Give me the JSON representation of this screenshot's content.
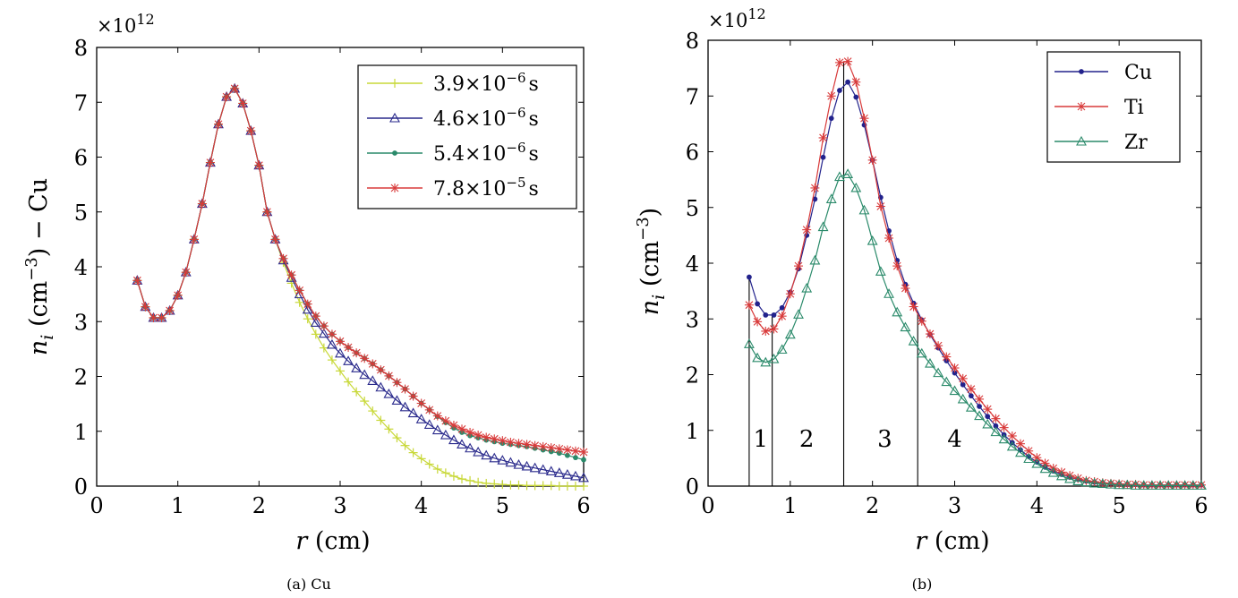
{
  "chart_data": [
    {
      "type": "line",
      "caption": "(a) Cu",
      "multiplier": "×10",
      "multiplier_exp": "12",
      "xlabel_var": "r",
      "xlabel_unit": " (cm)",
      "ylabel_var": "n",
      "ylabel_sub": "i",
      "ylabel_unit": " (cm",
      "ylabel_exp": "−3",
      "ylabel_tail": ")  − Cu",
      "xlim": [
        0,
        6
      ],
      "ylim": [
        0,
        8
      ],
      "xticks": [
        0,
        1,
        2,
        3,
        4,
        5,
        6
      ],
      "yticks": [
        0,
        1,
        2,
        3,
        4,
        5,
        6,
        7,
        8
      ],
      "grid": false,
      "legend_position": "top-right",
      "series": [
        {
          "name": "3.9×10⁻⁶s",
          "label_main": "3.9×10",
          "label_exp": "−6",
          "label_unit": "s",
          "color": "#c8d838",
          "marker": "plus",
          "x": [
            0.5,
            0.6,
            0.7,
            0.8,
            0.9,
            1.0,
            1.1,
            1.2,
            1.3,
            1.4,
            1.5,
            1.6,
            1.7,
            1.8,
            1.9,
            2.0,
            2.1,
            2.2,
            2.3,
            2.4,
            2.5,
            2.6,
            2.7,
            2.8,
            2.9,
            3.0,
            3.1,
            3.2,
            3.3,
            3.4,
            3.5,
            3.6,
            3.7,
            3.8,
            3.9,
            4.0,
            4.1,
            4.2,
            4.3,
            4.4,
            4.5,
            4.6,
            4.7,
            4.8,
            4.9,
            5.0,
            5.1,
            5.2,
            5.3,
            5.4,
            5.5,
            5.6,
            5.7,
            5.8,
            5.9,
            6.0
          ],
          "y": [
            3.75,
            3.27,
            3.07,
            3.07,
            3.2,
            3.48,
            3.9,
            4.5,
            5.15,
            5.9,
            6.6,
            7.1,
            7.25,
            6.98,
            6.48,
            5.85,
            5.0,
            4.5,
            4.08,
            3.7,
            3.35,
            3.05,
            2.77,
            2.52,
            2.3,
            2.1,
            1.9,
            1.72,
            1.55,
            1.37,
            1.2,
            1.04,
            0.88,
            0.74,
            0.61,
            0.5,
            0.4,
            0.31,
            0.24,
            0.18,
            0.13,
            0.1,
            0.07,
            0.05,
            0.04,
            0.03,
            0.02,
            0.02,
            0.01,
            0.01,
            0.01,
            0.01,
            0.0,
            0.0,
            0.0,
            0.0
          ]
        },
        {
          "name": "4.6×10⁻⁶s",
          "label_main": "4.6×10",
          "label_exp": "−6",
          "label_unit": "s",
          "color": "#2a2a8c",
          "marker": "triangle",
          "x": [
            0.5,
            0.6,
            0.7,
            0.8,
            0.9,
            1.0,
            1.1,
            1.2,
            1.3,
            1.4,
            1.5,
            1.6,
            1.7,
            1.8,
            1.9,
            2.0,
            2.1,
            2.2,
            2.3,
            2.4,
            2.5,
            2.6,
            2.7,
            2.8,
            2.9,
            3.0,
            3.1,
            3.2,
            3.3,
            3.4,
            3.5,
            3.6,
            3.7,
            3.8,
            3.9,
            4.0,
            4.1,
            4.2,
            4.3,
            4.4,
            4.5,
            4.6,
            4.7,
            4.8,
            4.9,
            5.0,
            5.1,
            5.2,
            5.3,
            5.4,
            5.5,
            5.6,
            5.7,
            5.8,
            5.9,
            6.0
          ],
          "y": [
            3.75,
            3.27,
            3.07,
            3.07,
            3.2,
            3.48,
            3.9,
            4.5,
            5.15,
            5.9,
            6.6,
            7.1,
            7.25,
            6.98,
            6.48,
            5.85,
            5.0,
            4.5,
            4.12,
            3.8,
            3.5,
            3.22,
            2.98,
            2.78,
            2.58,
            2.42,
            2.28,
            2.15,
            2.03,
            1.92,
            1.8,
            1.68,
            1.56,
            1.44,
            1.33,
            1.22,
            1.12,
            1.02,
            0.93,
            0.84,
            0.76,
            0.69,
            0.62,
            0.56,
            0.51,
            0.47,
            0.43,
            0.39,
            0.36,
            0.33,
            0.3,
            0.27,
            0.24,
            0.21,
            0.18,
            0.15
          ]
        },
        {
          "name": "5.4×10⁻⁶s",
          "label_main": "5.4×10",
          "label_exp": "−6",
          "label_unit": "s",
          "color": "#2a8a6a",
          "marker": "dot",
          "x": [
            0.5,
            0.6,
            0.7,
            0.8,
            0.9,
            1.0,
            1.1,
            1.2,
            1.3,
            1.4,
            1.5,
            1.6,
            1.7,
            1.8,
            1.9,
            2.0,
            2.1,
            2.2,
            2.3,
            2.4,
            2.5,
            2.6,
            2.7,
            2.8,
            2.9,
            3.0,
            3.1,
            3.2,
            3.3,
            3.4,
            3.5,
            3.6,
            3.7,
            3.8,
            3.9,
            4.0,
            4.1,
            4.2,
            4.3,
            4.4,
            4.5,
            4.6,
            4.7,
            4.8,
            4.9,
            5.0,
            5.1,
            5.2,
            5.3,
            5.4,
            5.5,
            5.6,
            5.7,
            5.8,
            5.9,
            6.0
          ],
          "y": [
            3.75,
            3.27,
            3.07,
            3.07,
            3.2,
            3.48,
            3.9,
            4.5,
            5.15,
            5.9,
            6.6,
            7.1,
            7.25,
            6.98,
            6.48,
            5.85,
            5.0,
            4.5,
            4.15,
            3.85,
            3.57,
            3.32,
            3.1,
            2.92,
            2.77,
            2.64,
            2.53,
            2.43,
            2.33,
            2.23,
            2.12,
            2.01,
            1.89,
            1.77,
            1.64,
            1.51,
            1.39,
            1.27,
            1.16,
            1.06,
            0.98,
            0.92,
            0.88,
            0.84,
            0.81,
            0.78,
            0.76,
            0.74,
            0.72,
            0.69,
            0.66,
            0.63,
            0.6,
            0.56,
            0.52,
            0.48
          ]
        },
        {
          "name": "7.8×10⁻⁵s",
          "label_main": "7.8×10",
          "label_exp": "−5",
          "label_unit": "s",
          "color": "#d83a3a",
          "marker": "star",
          "x": [
            0.5,
            0.6,
            0.7,
            0.8,
            0.9,
            1.0,
            1.1,
            1.2,
            1.3,
            1.4,
            1.5,
            1.6,
            1.7,
            1.8,
            1.9,
            2.0,
            2.1,
            2.2,
            2.3,
            2.4,
            2.5,
            2.6,
            2.7,
            2.8,
            2.9,
            3.0,
            3.1,
            3.2,
            3.3,
            3.4,
            3.5,
            3.6,
            3.7,
            3.8,
            3.9,
            4.0,
            4.1,
            4.2,
            4.3,
            4.4,
            4.5,
            4.6,
            4.7,
            4.8,
            4.9,
            5.0,
            5.1,
            5.2,
            5.3,
            5.4,
            5.5,
            5.6,
            5.7,
            5.8,
            5.9,
            6.0
          ],
          "y": [
            3.75,
            3.27,
            3.07,
            3.07,
            3.2,
            3.48,
            3.9,
            4.5,
            5.15,
            5.9,
            6.6,
            7.1,
            7.25,
            6.98,
            6.48,
            5.85,
            5.0,
            4.5,
            4.15,
            3.85,
            3.57,
            3.32,
            3.1,
            2.92,
            2.77,
            2.64,
            2.53,
            2.43,
            2.33,
            2.23,
            2.12,
            2.01,
            1.89,
            1.77,
            1.64,
            1.51,
            1.39,
            1.28,
            1.19,
            1.11,
            1.04,
            0.98,
            0.93,
            0.89,
            0.86,
            0.83,
            0.8,
            0.78,
            0.76,
            0.74,
            0.72,
            0.7,
            0.68,
            0.66,
            0.64,
            0.62
          ]
        }
      ]
    },
    {
      "type": "line",
      "caption": "(b)",
      "multiplier": "×10",
      "multiplier_exp": "12",
      "xlabel_var": "r",
      "xlabel_unit": " (cm)",
      "ylabel_var": "n",
      "ylabel_sub": "i",
      "ylabel_unit": " (cm",
      "ylabel_exp": "−3",
      "ylabel_tail": ")",
      "xlim": [
        0,
        6
      ],
      "ylim": [
        0,
        8
      ],
      "xticks": [
        0,
        1,
        2,
        3,
        4,
        5,
        6
      ],
      "yticks": [
        0,
        1,
        2,
        3,
        4,
        5,
        6,
        7,
        8
      ],
      "grid": false,
      "legend_position": "top-right",
      "vlines": [
        0.5,
        0.78,
        1.65,
        2.55
      ],
      "region_labels": [
        {
          "text": "1",
          "x": 0.64,
          "y": 0.85
        },
        {
          "text": "2",
          "x": 1.2,
          "y": 0.85
        },
        {
          "text": "3",
          "x": 2.15,
          "y": 0.85
        },
        {
          "text": "4",
          "x": 3.0,
          "y": 0.85
        }
      ],
      "series": [
        {
          "name": "Cu",
          "color": "#22228c",
          "marker": "dot",
          "x": [
            0.5,
            0.6,
            0.7,
            0.8,
            0.9,
            1.0,
            1.1,
            1.2,
            1.3,
            1.4,
            1.5,
            1.6,
            1.7,
            1.8,
            1.9,
            2.0,
            2.1,
            2.2,
            2.3,
            2.4,
            2.5,
            2.6,
            2.7,
            2.8,
            2.9,
            3.0,
            3.1,
            3.2,
            3.3,
            3.4,
            3.5,
            3.6,
            3.7,
            3.8,
            3.9,
            4.0,
            4.1,
            4.2,
            4.3,
            4.4,
            4.5,
            4.6,
            4.7,
            4.8,
            4.9,
            5.0,
            5.1,
            5.2,
            5.3,
            5.4,
            5.5,
            5.6,
            5.7,
            5.8,
            5.9,
            6.0
          ],
          "y": [
            3.75,
            3.27,
            3.07,
            3.07,
            3.2,
            3.48,
            3.9,
            4.5,
            5.15,
            5.9,
            6.6,
            7.1,
            7.25,
            6.98,
            6.48,
            5.85,
            5.18,
            4.58,
            4.05,
            3.62,
            3.28,
            2.98,
            2.72,
            2.48,
            2.25,
            2.03,
            1.82,
            1.62,
            1.43,
            1.25,
            1.08,
            0.92,
            0.78,
            0.65,
            0.53,
            0.43,
            0.34,
            0.27,
            0.21,
            0.16,
            0.12,
            0.09,
            0.07,
            0.06,
            0.05,
            0.04,
            0.03,
            0.03,
            0.02,
            0.02,
            0.02,
            0.02,
            0.02,
            0.02,
            0.02,
            0.02
          ]
        },
        {
          "name": "Ti",
          "color": "#d83a3a",
          "marker": "star",
          "x": [
            0.5,
            0.6,
            0.7,
            0.8,
            0.9,
            1.0,
            1.1,
            1.2,
            1.3,
            1.4,
            1.5,
            1.6,
            1.7,
            1.8,
            1.9,
            2.0,
            2.1,
            2.2,
            2.3,
            2.4,
            2.5,
            2.6,
            2.7,
            2.8,
            2.9,
            3.0,
            3.1,
            3.2,
            3.3,
            3.4,
            3.5,
            3.6,
            3.7,
            3.8,
            3.9,
            4.0,
            4.1,
            4.2,
            4.3,
            4.4,
            4.5,
            4.6,
            4.7,
            4.8,
            4.9,
            5.0,
            5.1,
            5.2,
            5.3,
            5.4,
            5.5,
            5.6,
            5.7,
            5.8,
            5.9,
            6.0
          ],
          "y": [
            3.25,
            2.95,
            2.78,
            2.82,
            3.05,
            3.45,
            3.95,
            4.6,
            5.35,
            6.25,
            7.0,
            7.6,
            7.62,
            7.25,
            6.6,
            5.85,
            5.02,
            4.45,
            3.95,
            3.55,
            3.22,
            2.96,
            2.73,
            2.52,
            2.32,
            2.12,
            1.93,
            1.74,
            1.56,
            1.38,
            1.21,
            1.05,
            0.9,
            0.76,
            0.63,
            0.51,
            0.41,
            0.32,
            0.25,
            0.19,
            0.14,
            0.1,
            0.08,
            0.06,
            0.05,
            0.04,
            0.03,
            0.03,
            0.02,
            0.02,
            0.02,
            0.02,
            0.02,
            0.02,
            0.02,
            0.02
          ]
        },
        {
          "name": "Zr",
          "color": "#2a8a6a",
          "marker": "triangle",
          "x": [
            0.5,
            0.6,
            0.7,
            0.8,
            0.9,
            1.0,
            1.1,
            1.2,
            1.3,
            1.4,
            1.5,
            1.6,
            1.7,
            1.8,
            1.9,
            2.0,
            2.1,
            2.2,
            2.3,
            2.4,
            2.5,
            2.6,
            2.7,
            2.8,
            2.9,
            3.0,
            3.1,
            3.2,
            3.3,
            3.4,
            3.5,
            3.6,
            3.7,
            3.8,
            3.9,
            4.0,
            4.1,
            4.2,
            4.3,
            4.4,
            4.5,
            4.6,
            4.7,
            4.8,
            4.9,
            5.0,
            5.1,
            5.2,
            5.3,
            5.4,
            5.5,
            5.6,
            5.7,
            5.8,
            5.9,
            6.0
          ],
          "y": [
            2.55,
            2.3,
            2.22,
            2.28,
            2.45,
            2.72,
            3.08,
            3.55,
            4.05,
            4.65,
            5.15,
            5.55,
            5.6,
            5.35,
            4.95,
            4.4,
            3.85,
            3.45,
            3.12,
            2.85,
            2.6,
            2.38,
            2.2,
            2.03,
            1.87,
            1.71,
            1.56,
            1.41,
            1.26,
            1.11,
            0.97,
            0.84,
            0.71,
            0.6,
            0.49,
            0.4,
            0.31,
            0.24,
            0.18,
            0.13,
            0.09,
            0.07,
            0.05,
            0.04,
            0.03,
            0.02,
            0.02,
            0.01,
            0.01,
            0.01,
            0.01,
            0.01,
            0.01,
            0.01,
            0.01,
            0.01
          ]
        }
      ]
    }
  ]
}
